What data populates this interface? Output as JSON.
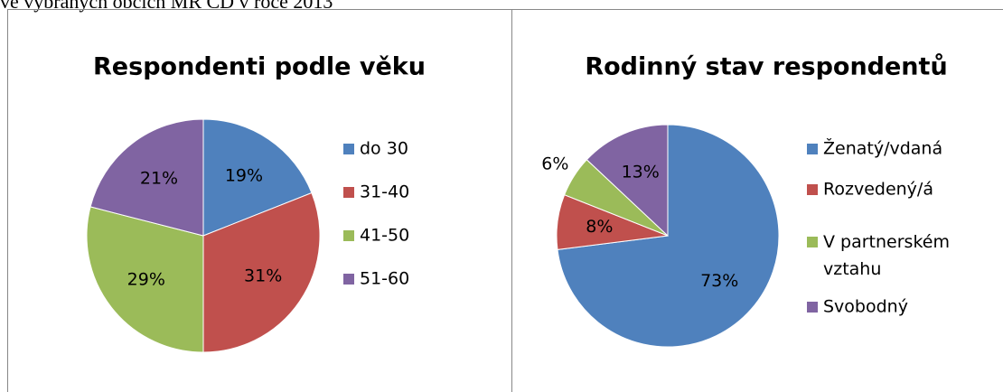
{
  "caption": "ve vybraných obcích MR CD v roce 2013",
  "chart_data": [
    {
      "type": "pie",
      "title": "Respondenti podle věku",
      "categories": [
        "do 30",
        "31-40",
        "41-50",
        "51-60"
      ],
      "values": [
        19,
        31,
        29,
        21
      ],
      "value_labels": [
        "19%",
        "31%",
        "29%",
        "21%"
      ],
      "colors": [
        "#4f81bd",
        "#c0504d",
        "#9bbb59",
        "#8064a2"
      ],
      "legend": "right"
    },
    {
      "type": "pie",
      "title": "Rodinný stav respondentů",
      "categories": [
        "Ženatý/vdaná",
        "Rozvedený/á",
        "V partnerském vztahu",
        "Svobodný"
      ],
      "values": [
        73,
        8,
        6,
        13
      ],
      "value_labels": [
        "73%",
        "8%",
        "6%",
        "13%"
      ],
      "colors": [
        "#4f81bd",
        "#c0504d",
        "#9bbb59",
        "#8064a2"
      ],
      "legend": "right"
    }
  ]
}
